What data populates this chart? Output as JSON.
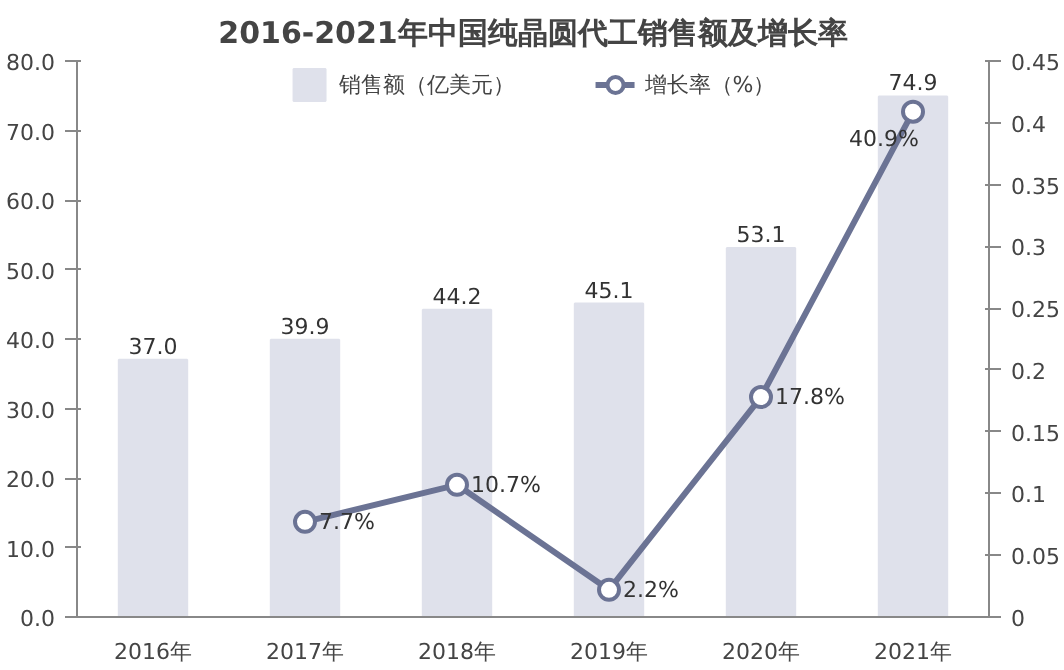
{
  "chart_data": {
    "type": "bar",
    "title": "2016-2021年中国纯晶圆代工销售额及增长率",
    "categories": [
      "2016年",
      "2017年",
      "2018年",
      "2019年",
      "2020年",
      "2021年"
    ],
    "series": [
      {
        "name": "销售额（亿美元）",
        "color": "#dfe1eb",
        "values": [
          37.0,
          39.9,
          44.2,
          45.1,
          53.1,
          74.9
        ],
        "value_labels": [
          "37.0",
          "39.9",
          "44.2",
          "45.1",
          "53.1",
          "74.9"
        ]
      },
      {
        "name": "增长率（%）",
        "type": "line",
        "axis": "y2",
        "color": "#6b7394",
        "marker": "circle",
        "values": [
          null,
          0.077,
          0.107,
          0.022,
          0.178,
          0.409
        ],
        "value_labels": [
          null,
          "7.7%",
          "10.7%",
          "2.2%",
          "17.8%",
          "40.9%"
        ]
      }
    ],
    "ylim": [
      0,
      80
    ],
    "yticks": [
      {
        "value": 0,
        "label": "0.0"
      },
      {
        "value": 10,
        "label": "10.0"
      },
      {
        "value": 20,
        "label": "20.0"
      },
      {
        "value": 30,
        "label": "30.0"
      },
      {
        "value": 40,
        "label": "40.0"
      },
      {
        "value": 50,
        "label": "50.0"
      },
      {
        "value": 60,
        "label": "60.0"
      },
      {
        "value": 70,
        "label": "70.0"
      },
      {
        "value": 80,
        "label": "80.0"
      }
    ],
    "y2lim": [
      0,
      0.45
    ],
    "y2ticks": [
      0,
      0.05,
      0.1,
      0.15,
      0.2,
      0.25,
      0.3,
      0.35,
      0.4,
      0.45
    ],
    "legend": "top",
    "grid": false
  }
}
